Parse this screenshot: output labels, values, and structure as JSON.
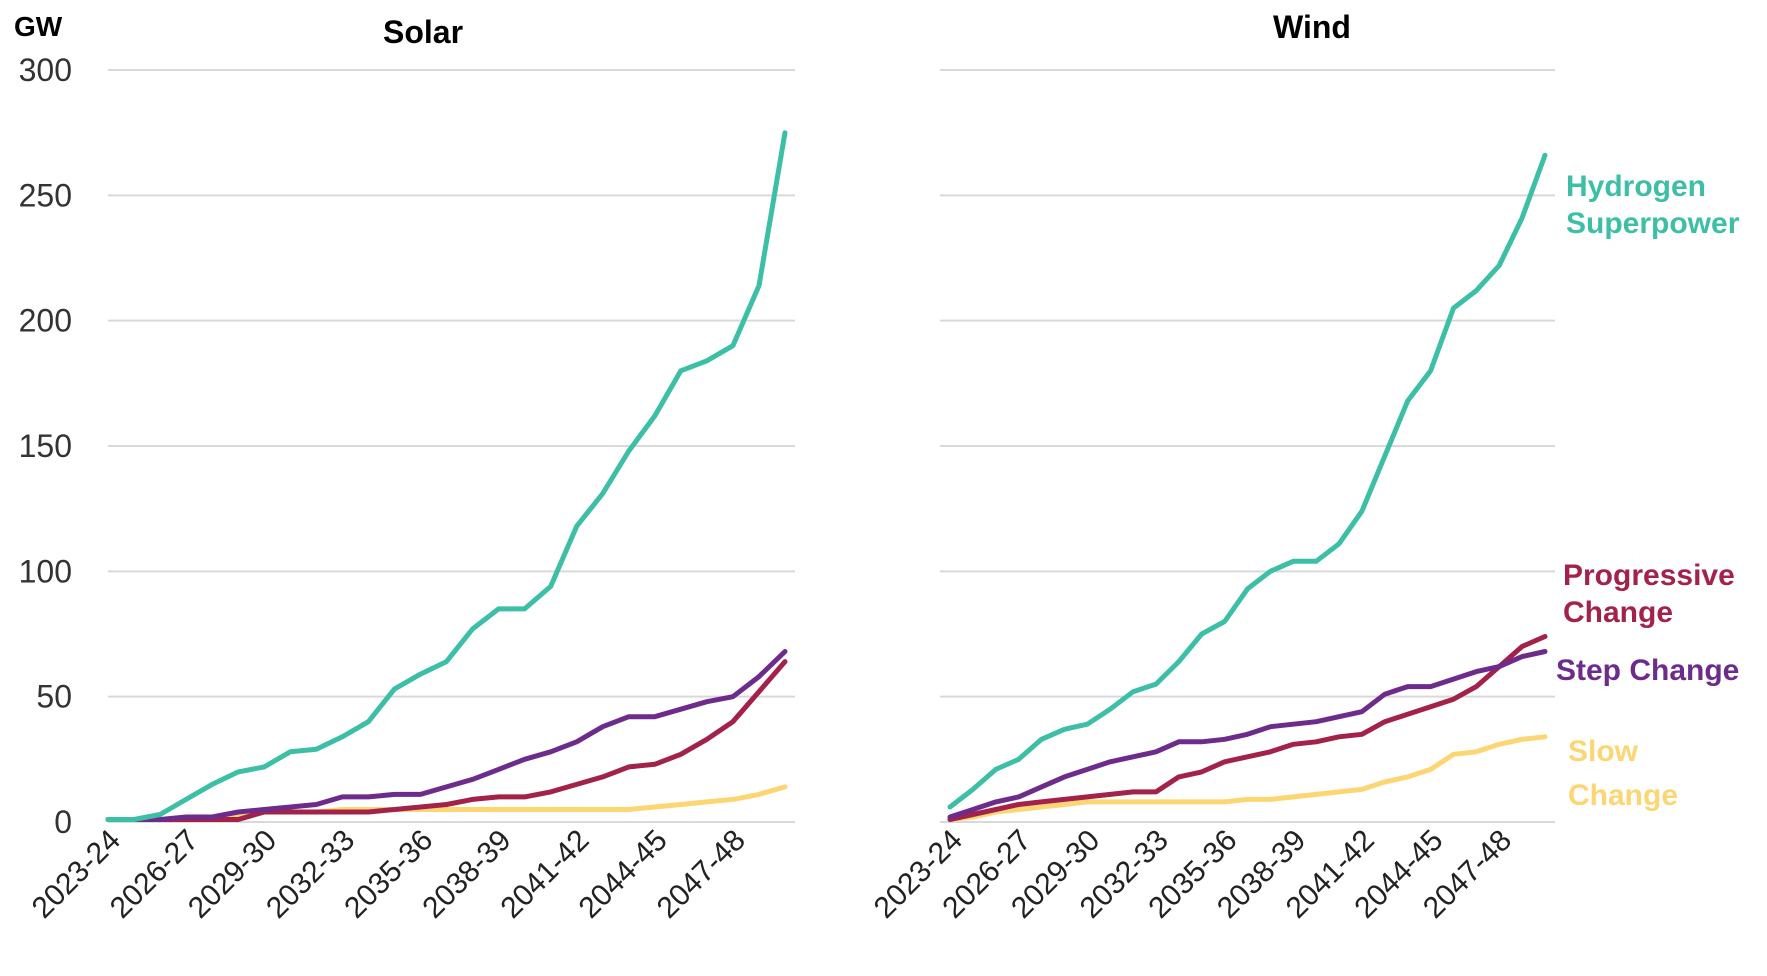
{
  "y_unit": "GW",
  "colors": {
    "hydrogen": "#3cbfa6",
    "progressive": "#a3224a",
    "step": "#6d2c8c",
    "slow": "#fcd672"
  },
  "legend": {
    "hydrogen": [
      "Hydrogen",
      "Superpower"
    ],
    "progressive": [
      "Progressive",
      "Change"
    ],
    "step": [
      "Step Change"
    ],
    "slow": [
      "Slow",
      "Change"
    ]
  },
  "chart_data": [
    {
      "type": "line",
      "title": "Solar",
      "ylabel": "GW",
      "ylim": [
        0,
        300
      ],
      "yticks": [
        0,
        50,
        100,
        150,
        200,
        250,
        300
      ],
      "x": [
        "2023-24",
        "2024-25",
        "2025-26",
        "2026-27",
        "2027-28",
        "2028-29",
        "2029-30",
        "2030-31",
        "2031-32",
        "2032-33",
        "2033-34",
        "2034-35",
        "2035-36",
        "2036-37",
        "2037-38",
        "2038-39",
        "2039-40",
        "2040-41",
        "2041-42",
        "2042-43",
        "2043-44",
        "2044-45",
        "2045-46",
        "2046-47",
        "2047-48",
        "2048-49",
        "2049-50"
      ],
      "x_tick_labels": [
        "2023-24",
        "2026-27",
        "2029-30",
        "2032-33",
        "2035-36",
        "2038-39",
        "2041-42",
        "2044-45",
        "2047-48"
      ],
      "grid": true,
      "series": [
        {
          "key": "hydrogen",
          "name": "Hydrogen Superpower",
          "values": [
            1,
            1,
            3,
            9,
            15,
            20,
            22,
            28,
            29,
            34,
            40,
            53,
            59,
            64,
            77,
            85,
            85,
            94,
            118,
            131,
            148,
            162,
            180,
            184,
            190,
            214,
            275
          ]
        },
        {
          "key": "step",
          "name": "Step Change",
          "values": [
            1,
            1,
            1,
            2,
            2,
            4,
            5,
            6,
            7,
            10,
            10,
            11,
            11,
            14,
            17,
            21,
            25,
            28,
            32,
            38,
            42,
            42,
            45,
            48,
            50,
            58,
            68
          ]
        },
        {
          "key": "progressive",
          "name": "Progressive Change",
          "values": [
            1,
            1,
            1,
            1,
            1,
            1,
            4,
            4,
            4,
            4,
            4,
            5,
            6,
            7,
            9,
            10,
            10,
            12,
            15,
            18,
            22,
            23,
            27,
            33,
            40,
            52,
            64
          ]
        },
        {
          "key": "slow",
          "name": "Slow Change",
          "values": [
            1,
            1,
            1,
            1,
            2,
            3,
            4,
            4,
            4,
            5,
            5,
            5,
            5,
            5,
            5,
            5,
            5,
            5,
            5,
            5,
            5,
            6,
            7,
            8,
            9,
            11,
            14
          ]
        }
      ]
    },
    {
      "type": "line",
      "title": "Wind",
      "ylabel": "",
      "ylim": [
        0,
        300
      ],
      "yticks": [
        0,
        50,
        100,
        150,
        200,
        250,
        300
      ],
      "x": [
        "2023-24",
        "2024-25",
        "2025-26",
        "2026-27",
        "2027-28",
        "2028-29",
        "2029-30",
        "2030-31",
        "2031-32",
        "2032-33",
        "2033-34",
        "2034-35",
        "2035-36",
        "2036-37",
        "2037-38",
        "2038-39",
        "2039-40",
        "2040-41",
        "2041-42",
        "2042-43",
        "2043-44",
        "2044-45",
        "2045-46",
        "2046-47",
        "2047-48",
        "2048-49",
        "2049-50"
      ],
      "x_tick_labels": [
        "2023-24",
        "2026-27",
        "2029-30",
        "2032-33",
        "2035-36",
        "2038-39",
        "2041-42",
        "2044-45",
        "2047-48"
      ],
      "grid": true,
      "series": [
        {
          "key": "hydrogen",
          "name": "Hydrogen Superpower",
          "values": [
            6,
            13,
            21,
            25,
            33,
            37,
            39,
            45,
            52,
            55,
            64,
            75,
            80,
            93,
            100,
            104,
            104,
            111,
            124,
            146,
            168,
            180,
            205,
            212,
            222,
            241,
            266
          ]
        },
        {
          "key": "step",
          "name": "Step Change",
          "values": [
            2,
            5,
            8,
            10,
            14,
            18,
            21,
            24,
            26,
            28,
            32,
            32,
            33,
            35,
            38,
            39,
            40,
            42,
            44,
            51,
            54,
            54,
            57,
            60,
            62,
            66,
            68
          ]
        },
        {
          "key": "progressive",
          "name": "Progressive Change",
          "values": [
            1,
            3,
            5,
            7,
            8,
            9,
            10,
            11,
            12,
            12,
            18,
            20,
            24,
            26,
            28,
            31,
            32,
            34,
            35,
            40,
            43,
            46,
            49,
            54,
            62,
            70,
            74
          ]
        },
        {
          "key": "slow",
          "name": "Slow Change",
          "values": [
            1,
            2,
            4,
            5,
            6,
            7,
            8,
            8,
            8,
            8,
            8,
            8,
            8,
            9,
            9,
            10,
            11,
            12,
            13,
            16,
            18,
            21,
            27,
            28,
            31,
            33,
            34
          ]
        }
      ]
    }
  ]
}
